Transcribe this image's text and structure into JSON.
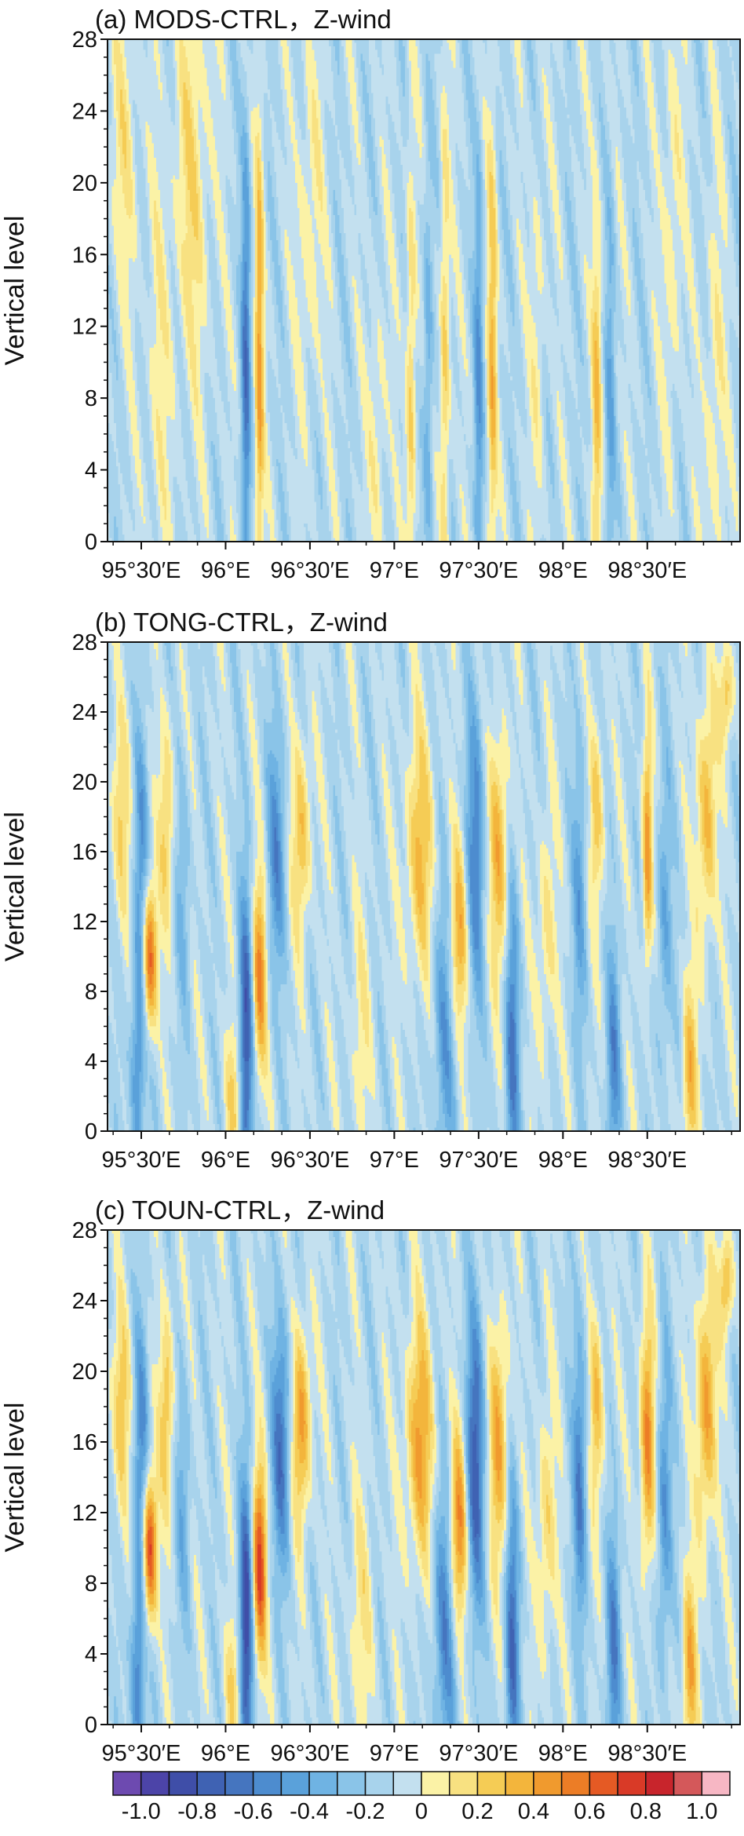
{
  "chart_data": [
    {
      "type": "heatmap",
      "title": "(a) MODS-CTRL，Z-wind",
      "ylabel": "Vertical level",
      "xlabel": "",
      "xlim": [
        95.3,
        99.05
      ],
      "ylim": [
        0,
        28
      ],
      "xticks": [
        {
          "value": 95.5,
          "label": "95°30′E"
        },
        {
          "value": 96.0,
          "label": "96°E"
        },
        {
          "value": 96.5,
          "label": "96°30′E"
        },
        {
          "value": 97.0,
          "label": "97°E"
        },
        {
          "value": 97.5,
          "label": "97°30′E"
        },
        {
          "value": 98.0,
          "label": "98°E"
        },
        {
          "value": 98.5,
          "label": "98°30′E"
        }
      ],
      "yticks": [
        {
          "value": 0,
          "label": "0"
        },
        {
          "value": 4,
          "label": "4"
        },
        {
          "value": 8,
          "label": "8"
        },
        {
          "value": 12,
          "label": "12"
        },
        {
          "value": 16,
          "label": "16"
        },
        {
          "value": 20,
          "label": "20"
        },
        {
          "value": 24,
          "label": "24"
        },
        {
          "value": 28,
          "label": "28"
        }
      ],
      "background_value": -0.1,
      "features": [
        {
          "x": 95.4,
          "y": 22,
          "sx": 0.06,
          "sy": 6,
          "amp": 0.2
        },
        {
          "x": 95.6,
          "y": 8,
          "sx": 0.05,
          "sy": 9,
          "amp": 0.15
        },
        {
          "x": 95.8,
          "y": 20,
          "sx": 0.08,
          "sy": 8,
          "amp": 0.25
        },
        {
          "x": 96.12,
          "y": 10,
          "sx": 0.02,
          "sy": 9,
          "amp": -0.5
        },
        {
          "x": 96.2,
          "y": 10,
          "sx": 0.018,
          "sy": 9,
          "amp": 0.5
        },
        {
          "x": 96.5,
          "y": 18,
          "sx": 0.05,
          "sy": 7,
          "amp": 0.2
        },
        {
          "x": 96.9,
          "y": 6,
          "sx": 0.04,
          "sy": 6,
          "amp": 0.18
        },
        {
          "x": 97.1,
          "y": 9,
          "sx": 0.02,
          "sy": 9,
          "amp": 0.35
        },
        {
          "x": 97.2,
          "y": 9,
          "sx": 0.02,
          "sy": 9,
          "amp": -0.3
        },
        {
          "x": 97.3,
          "y": 10,
          "sx": 0.02,
          "sy": 10,
          "amp": 0.35
        },
        {
          "x": 97.5,
          "y": 9,
          "sx": 0.02,
          "sy": 9,
          "amp": -0.35
        },
        {
          "x": 97.58,
          "y": 10,
          "sx": 0.02,
          "sy": 9,
          "amp": 0.4
        },
        {
          "x": 97.85,
          "y": 12,
          "sx": 0.03,
          "sy": 7,
          "amp": 0.18
        },
        {
          "x": 98.2,
          "y": 8,
          "sx": 0.02,
          "sy": 8,
          "amp": 0.35
        },
        {
          "x": 98.28,
          "y": 8,
          "sx": 0.02,
          "sy": 8,
          "amp": -0.25
        },
        {
          "x": 98.65,
          "y": 18,
          "sx": 0.04,
          "sy": 8,
          "amp": 0.2
        },
        {
          "x": 98.9,
          "y": 8,
          "sx": 0.04,
          "sy": 8,
          "amp": 0.2
        }
      ]
    },
    {
      "type": "heatmap",
      "title": "(b) TONG-CTRL，Z-wind",
      "ylabel": "Vertical level",
      "xlabel": "",
      "xlim": [
        95.3,
        99.05
      ],
      "ylim": [
        0,
        28
      ],
      "xticks": [
        {
          "value": 95.5,
          "label": "95°30′E"
        },
        {
          "value": 96.0,
          "label": "96°E"
        },
        {
          "value": 96.5,
          "label": "96°30′E"
        },
        {
          "value": 97.0,
          "label": "97°E"
        },
        {
          "value": 97.5,
          "label": "97°30′E"
        },
        {
          "value": 98.0,
          "label": "98°E"
        },
        {
          "value": 98.5,
          "label": "98°30′E"
        }
      ],
      "yticks": [
        {
          "value": 0,
          "label": "0"
        },
        {
          "value": 4,
          "label": "4"
        },
        {
          "value": 8,
          "label": "8"
        },
        {
          "value": 12,
          "label": "12"
        },
        {
          "value": 16,
          "label": "16"
        },
        {
          "value": 20,
          "label": "20"
        },
        {
          "value": 24,
          "label": "24"
        },
        {
          "value": 28,
          "label": "28"
        }
      ],
      "background_value": -0.1,
      "features": [
        {
          "x": 95.38,
          "y": 18,
          "sx": 0.04,
          "sy": 4,
          "amp": 0.3
        },
        {
          "x": 95.48,
          "y": 4,
          "sx": 0.03,
          "sy": 5,
          "amp": -0.45
        },
        {
          "x": 95.5,
          "y": 16,
          "sx": 0.03,
          "sy": 5,
          "amp": -0.35
        },
        {
          "x": 95.55,
          "y": 10,
          "sx": 0.03,
          "sy": 3,
          "amp": 0.75
        },
        {
          "x": 95.65,
          "y": 18,
          "sx": 0.03,
          "sy": 4,
          "amp": 0.35
        },
        {
          "x": 95.75,
          "y": 14,
          "sx": 0.03,
          "sy": 5,
          "amp": -0.2
        },
        {
          "x": 96.05,
          "y": 2,
          "sx": 0.04,
          "sy": 3,
          "amp": 0.3
        },
        {
          "x": 96.12,
          "y": 5,
          "sx": 0.03,
          "sy": 6,
          "amp": -0.7
        },
        {
          "x": 96.2,
          "y": 9,
          "sx": 0.03,
          "sy": 4,
          "amp": 0.6
        },
        {
          "x": 96.3,
          "y": 16,
          "sx": 0.04,
          "sy": 5,
          "amp": -0.4
        },
        {
          "x": 96.45,
          "y": 17,
          "sx": 0.04,
          "sy": 4,
          "amp": 0.4
        },
        {
          "x": 96.8,
          "y": 6,
          "sx": 0.05,
          "sy": 5,
          "amp": 0.15
        },
        {
          "x": 97.15,
          "y": 16,
          "sx": 0.06,
          "sy": 5,
          "amp": 0.4
        },
        {
          "x": 97.3,
          "y": 6,
          "sx": 0.05,
          "sy": 6,
          "amp": -0.35
        },
        {
          "x": 97.38,
          "y": 11,
          "sx": 0.04,
          "sy": 4,
          "amp": 0.5
        },
        {
          "x": 97.48,
          "y": 16,
          "sx": 0.04,
          "sy": 6,
          "amp": -0.45
        },
        {
          "x": 97.62,
          "y": 16,
          "sx": 0.04,
          "sy": 5,
          "amp": 0.45
        },
        {
          "x": 97.7,
          "y": 5,
          "sx": 0.03,
          "sy": 6,
          "amp": -0.5
        },
        {
          "x": 97.9,
          "y": 11,
          "sx": 0.04,
          "sy": 5,
          "amp": 0.25
        },
        {
          "x": 98.1,
          "y": 14,
          "sx": 0.03,
          "sy": 6,
          "amp": -0.3
        },
        {
          "x": 98.2,
          "y": 18,
          "sx": 0.03,
          "sy": 4,
          "amp": 0.35
        },
        {
          "x": 98.3,
          "y": 4,
          "sx": 0.03,
          "sy": 5,
          "amp": -0.4
        },
        {
          "x": 98.5,
          "y": 16,
          "sx": 0.02,
          "sy": 5,
          "amp": 0.55
        },
        {
          "x": 98.6,
          "y": 12,
          "sx": 0.03,
          "sy": 6,
          "amp": -0.3
        },
        {
          "x": 98.75,
          "y": 3,
          "sx": 0.03,
          "sy": 4,
          "amp": 0.45
        },
        {
          "x": 98.85,
          "y": 18,
          "sx": 0.04,
          "sy": 5,
          "amp": 0.45
        },
        {
          "x": 98.97,
          "y": 25,
          "sx": 0.03,
          "sy": 2,
          "amp": 0.4
        }
      ]
    },
    {
      "type": "heatmap",
      "title": "(c) TOUN-CTRL，Z-wind",
      "ylabel": "Vertical level",
      "xlabel": "",
      "xlim": [
        95.3,
        99.05
      ],
      "ylim": [
        0,
        28
      ],
      "xticks": [
        {
          "value": 95.5,
          "label": "95°30′E"
        },
        {
          "value": 96.0,
          "label": "96°E"
        },
        {
          "value": 96.5,
          "label": "96°30′E"
        },
        {
          "value": 97.0,
          "label": "97°E"
        },
        {
          "value": 97.5,
          "label": "97°30′E"
        },
        {
          "value": 98.0,
          "label": "98°E"
        },
        {
          "value": 98.5,
          "label": "98°30′E"
        }
      ],
      "yticks": [
        {
          "value": 0,
          "label": "0"
        },
        {
          "value": 4,
          "label": "4"
        },
        {
          "value": 8,
          "label": "8"
        },
        {
          "value": 12,
          "label": "12"
        },
        {
          "value": 16,
          "label": "16"
        },
        {
          "value": 20,
          "label": "20"
        },
        {
          "value": 24,
          "label": "24"
        },
        {
          "value": 28,
          "label": "28"
        }
      ],
      "background_value": -0.1,
      "features": [
        {
          "x": 95.38,
          "y": 18,
          "sx": 0.04,
          "sy": 4,
          "amp": 0.35
        },
        {
          "x": 95.48,
          "y": 3,
          "sx": 0.03,
          "sy": 5,
          "amp": -0.5
        },
        {
          "x": 95.5,
          "y": 16,
          "sx": 0.03,
          "sy": 5,
          "amp": -0.4
        },
        {
          "x": 95.55,
          "y": 10,
          "sx": 0.03,
          "sy": 3,
          "amp": 0.85
        },
        {
          "x": 95.65,
          "y": 18,
          "sx": 0.03,
          "sy": 4,
          "amp": 0.4
        },
        {
          "x": 95.75,
          "y": 13,
          "sx": 0.03,
          "sy": 5,
          "amp": -0.25
        },
        {
          "x": 96.05,
          "y": 2,
          "sx": 0.04,
          "sy": 3,
          "amp": 0.3
        },
        {
          "x": 96.12,
          "y": 5,
          "sx": 0.03,
          "sy": 6,
          "amp": -0.8
        },
        {
          "x": 96.2,
          "y": 9,
          "sx": 0.03,
          "sy": 4,
          "amp": 0.8
        },
        {
          "x": 96.33,
          "y": 16,
          "sx": 0.04,
          "sy": 5,
          "amp": -0.55
        },
        {
          "x": 96.45,
          "y": 17,
          "sx": 0.04,
          "sy": 4,
          "amp": 0.55
        },
        {
          "x": 96.8,
          "y": 6,
          "sx": 0.05,
          "sy": 5,
          "amp": 0.2
        },
        {
          "x": 97.15,
          "y": 16,
          "sx": 0.06,
          "sy": 5,
          "amp": 0.5
        },
        {
          "x": 97.3,
          "y": 6,
          "sx": 0.05,
          "sy": 6,
          "amp": -0.45
        },
        {
          "x": 97.38,
          "y": 11,
          "sx": 0.04,
          "sy": 4,
          "amp": 0.65
        },
        {
          "x": 97.48,
          "y": 15,
          "sx": 0.04,
          "sy": 6,
          "amp": -0.65
        },
        {
          "x": 97.62,
          "y": 16,
          "sx": 0.04,
          "sy": 5,
          "amp": 0.5
        },
        {
          "x": 97.7,
          "y": 5,
          "sx": 0.03,
          "sy": 6,
          "amp": -0.55
        },
        {
          "x": 97.9,
          "y": 11,
          "sx": 0.04,
          "sy": 5,
          "amp": 0.3
        },
        {
          "x": 98.1,
          "y": 14,
          "sx": 0.03,
          "sy": 6,
          "amp": -0.45
        },
        {
          "x": 98.2,
          "y": 18,
          "sx": 0.03,
          "sy": 4,
          "amp": 0.4
        },
        {
          "x": 98.3,
          "y": 4,
          "sx": 0.03,
          "sy": 5,
          "amp": -0.45
        },
        {
          "x": 98.5,
          "y": 16,
          "sx": 0.03,
          "sy": 5,
          "amp": 0.6
        },
        {
          "x": 98.6,
          "y": 12,
          "sx": 0.03,
          "sy": 6,
          "amp": -0.4
        },
        {
          "x": 98.75,
          "y": 3,
          "sx": 0.03,
          "sy": 4,
          "amp": 0.5
        },
        {
          "x": 98.85,
          "y": 18,
          "sx": 0.04,
          "sy": 5,
          "amp": 0.55
        },
        {
          "x": 98.97,
          "y": 25,
          "sx": 0.03,
          "sy": 2,
          "amp": 0.45
        }
      ]
    }
  ],
  "colorbar": {
    "bins": [
      {
        "from": -1.1,
        "to": -1.0,
        "color": "#6d4ab0"
      },
      {
        "from": -1.0,
        "to": -0.9,
        "color": "#4c44a8"
      },
      {
        "from": -0.9,
        "to": -0.8,
        "color": "#3f4ea8"
      },
      {
        "from": -0.8,
        "to": -0.7,
        "color": "#3f62b3"
      },
      {
        "from": -0.7,
        "to": -0.6,
        "color": "#4575bf"
      },
      {
        "from": -0.6,
        "to": -0.5,
        "color": "#4d8ccf"
      },
      {
        "from": -0.5,
        "to": -0.4,
        "color": "#5aa1da"
      },
      {
        "from": -0.4,
        "to": -0.3,
        "color": "#6fb3e3"
      },
      {
        "from": -0.3,
        "to": -0.2,
        "color": "#8ac4e8"
      },
      {
        "from": -0.2,
        "to": -0.1,
        "color": "#a8d3ec"
      },
      {
        "from": -0.1,
        "to": 0.0,
        "color": "#c3e0ef"
      },
      {
        "from": 0.0,
        "to": 0.1,
        "color": "#fbf2a6"
      },
      {
        "from": 0.1,
        "to": 0.2,
        "color": "#f8e181"
      },
      {
        "from": 0.2,
        "to": 0.3,
        "color": "#f5cc55"
      },
      {
        "from": 0.3,
        "to": 0.4,
        "color": "#f3b53c"
      },
      {
        "from": 0.4,
        "to": 0.5,
        "color": "#f09a2e"
      },
      {
        "from": 0.5,
        "to": 0.6,
        "color": "#ec7d26"
      },
      {
        "from": 0.6,
        "to": 0.7,
        "color": "#e55a24"
      },
      {
        "from": 0.7,
        "to": 0.8,
        "color": "#d93a27"
      },
      {
        "from": 0.8,
        "to": 0.9,
        "color": "#c8252c"
      },
      {
        "from": 0.9,
        "to": 1.0,
        "color": "#d4585a"
      },
      {
        "from": 1.0,
        "to": 1.1,
        "color": "#f7b7c4"
      }
    ],
    "ticks": [
      {
        "value": -1.0,
        "label": "-1.0"
      },
      {
        "value": -0.8,
        "label": "-0.8"
      },
      {
        "value": -0.6,
        "label": "-0.6"
      },
      {
        "value": -0.4,
        "label": "-0.4"
      },
      {
        "value": -0.2,
        "label": "-0.2"
      },
      {
        "value": 0.0,
        "label": "0"
      },
      {
        "value": 0.2,
        "label": "0.2"
      },
      {
        "value": 0.4,
        "label": "0.4"
      },
      {
        "value": 0.6,
        "label": "0.6"
      },
      {
        "value": 0.8,
        "label": "0.8"
      },
      {
        "value": 1.0,
        "label": "1.0"
      }
    ]
  }
}
